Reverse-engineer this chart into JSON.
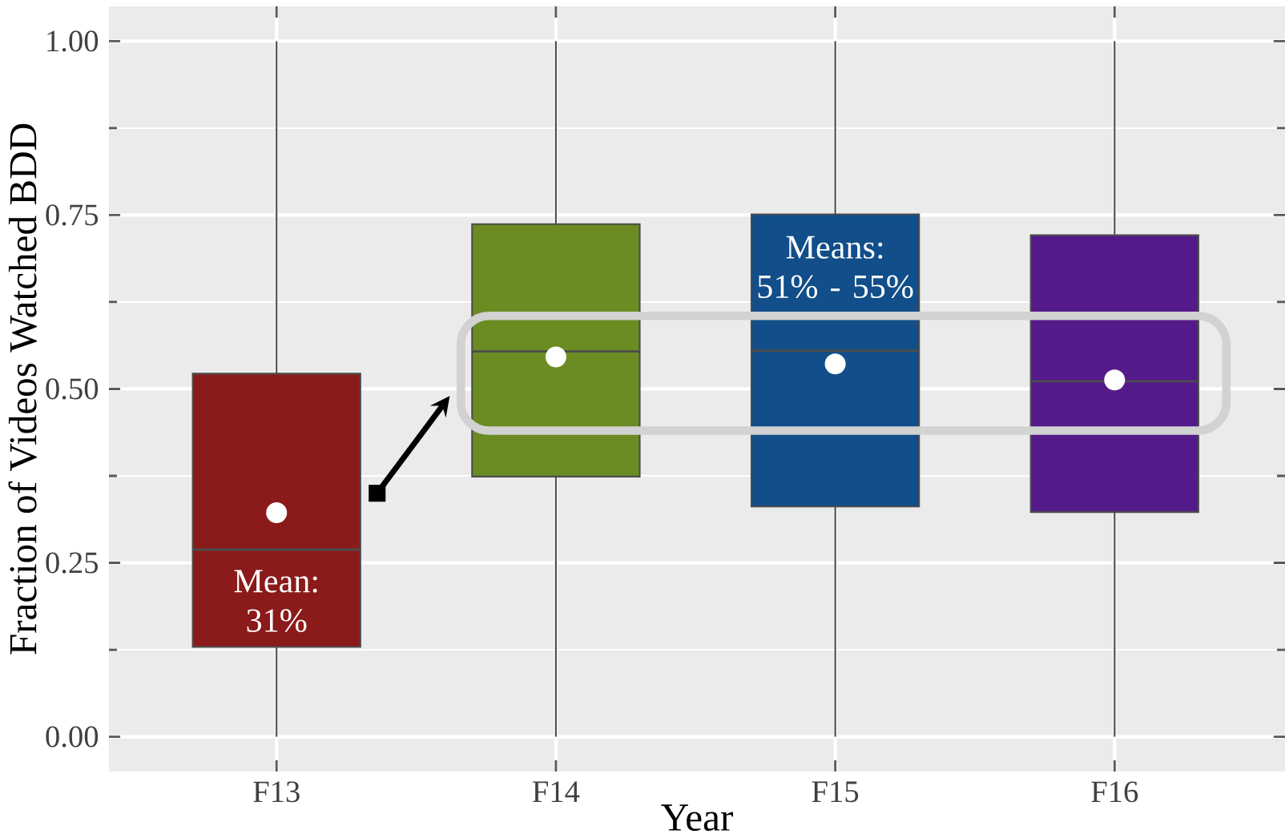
{
  "chart_data": {
    "type": "box",
    "xlabel": "Year",
    "ylabel": "Fraction of Videos Watched BDD",
    "categories": [
      "F13",
      "F14",
      "F15",
      "F16"
    ],
    "colors": [
      "#8b1a1a",
      "#6a8c23",
      "#114e8a",
      "#541a8a"
    ],
    "boxes": [
      {
        "low": 0,
        "q1": 0.129,
        "median": 0.269,
        "q3": 0.522,
        "high": 1,
        "mean": 0.322
      },
      {
        "low": 0,
        "q1": 0.374,
        "median": 0.554,
        "q3": 0.737,
        "high": 1,
        "mean": 0.546
      },
      {
        "low": 0,
        "q1": 0.331,
        "median": 0.555,
        "q3": 0.751,
        "high": 1,
        "mean": 0.536
      },
      {
        "low": 0,
        "q1": 0.323,
        "median": 0.511,
        "q3": 0.721,
        "high": 1,
        "mean": 0.513
      }
    ],
    "ylim": [
      -0.05,
      1.05
    ],
    "yticks": [
      {
        "value": 0,
        "label": "0.00"
      },
      {
        "value": 0.25,
        "label": "0.25"
      },
      {
        "value": 0.5,
        "label": "0.50"
      },
      {
        "value": 0.75,
        "label": "0.75"
      },
      {
        "value": 1,
        "label": "1.00"
      }
    ],
    "grid": true,
    "annotations": [
      "Mean: 31%",
      "Means: 51% - 55%"
    ]
  }
}
